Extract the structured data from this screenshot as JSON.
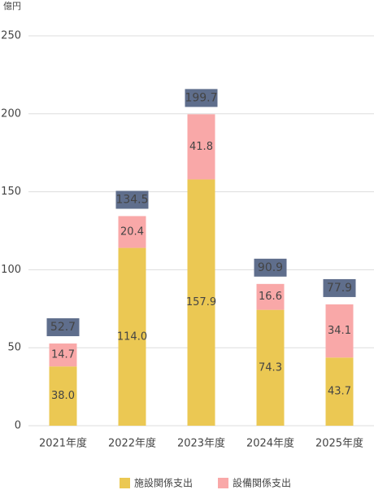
{
  "chart_data": {
    "type": "stacked_bar",
    "y_axis_label": "億円",
    "categories": [
      "2021年度",
      "2022年度",
      "2023年度",
      "2024年度",
      "2025年度"
    ],
    "series": [
      {
        "name": "施設関係支出",
        "color": "#ebc853",
        "values": [
          38.0,
          114.0,
          157.9,
          74.3,
          43.7
        ],
        "value_labels": [
          "38.0",
          "114.0",
          "157.9",
          "74.3",
          "43.7"
        ]
      },
      {
        "name": "設備関係支出",
        "color": "#f9a8a8",
        "values": [
          14.7,
          20.4,
          41.8,
          16.6,
          34.1
        ],
        "value_labels": [
          "14.7",
          "20.4",
          "41.8",
          "16.6",
          "34.1"
        ]
      }
    ],
    "total_labels": [
      "52.7",
      "134.5",
      "199.7",
      "90.9",
      "77.9"
    ],
    "ylim": [
      0,
      250
    ],
    "yticks": [
      0,
      50,
      100,
      150,
      200,
      250
    ],
    "grid": true,
    "legend": "bottom"
  }
}
